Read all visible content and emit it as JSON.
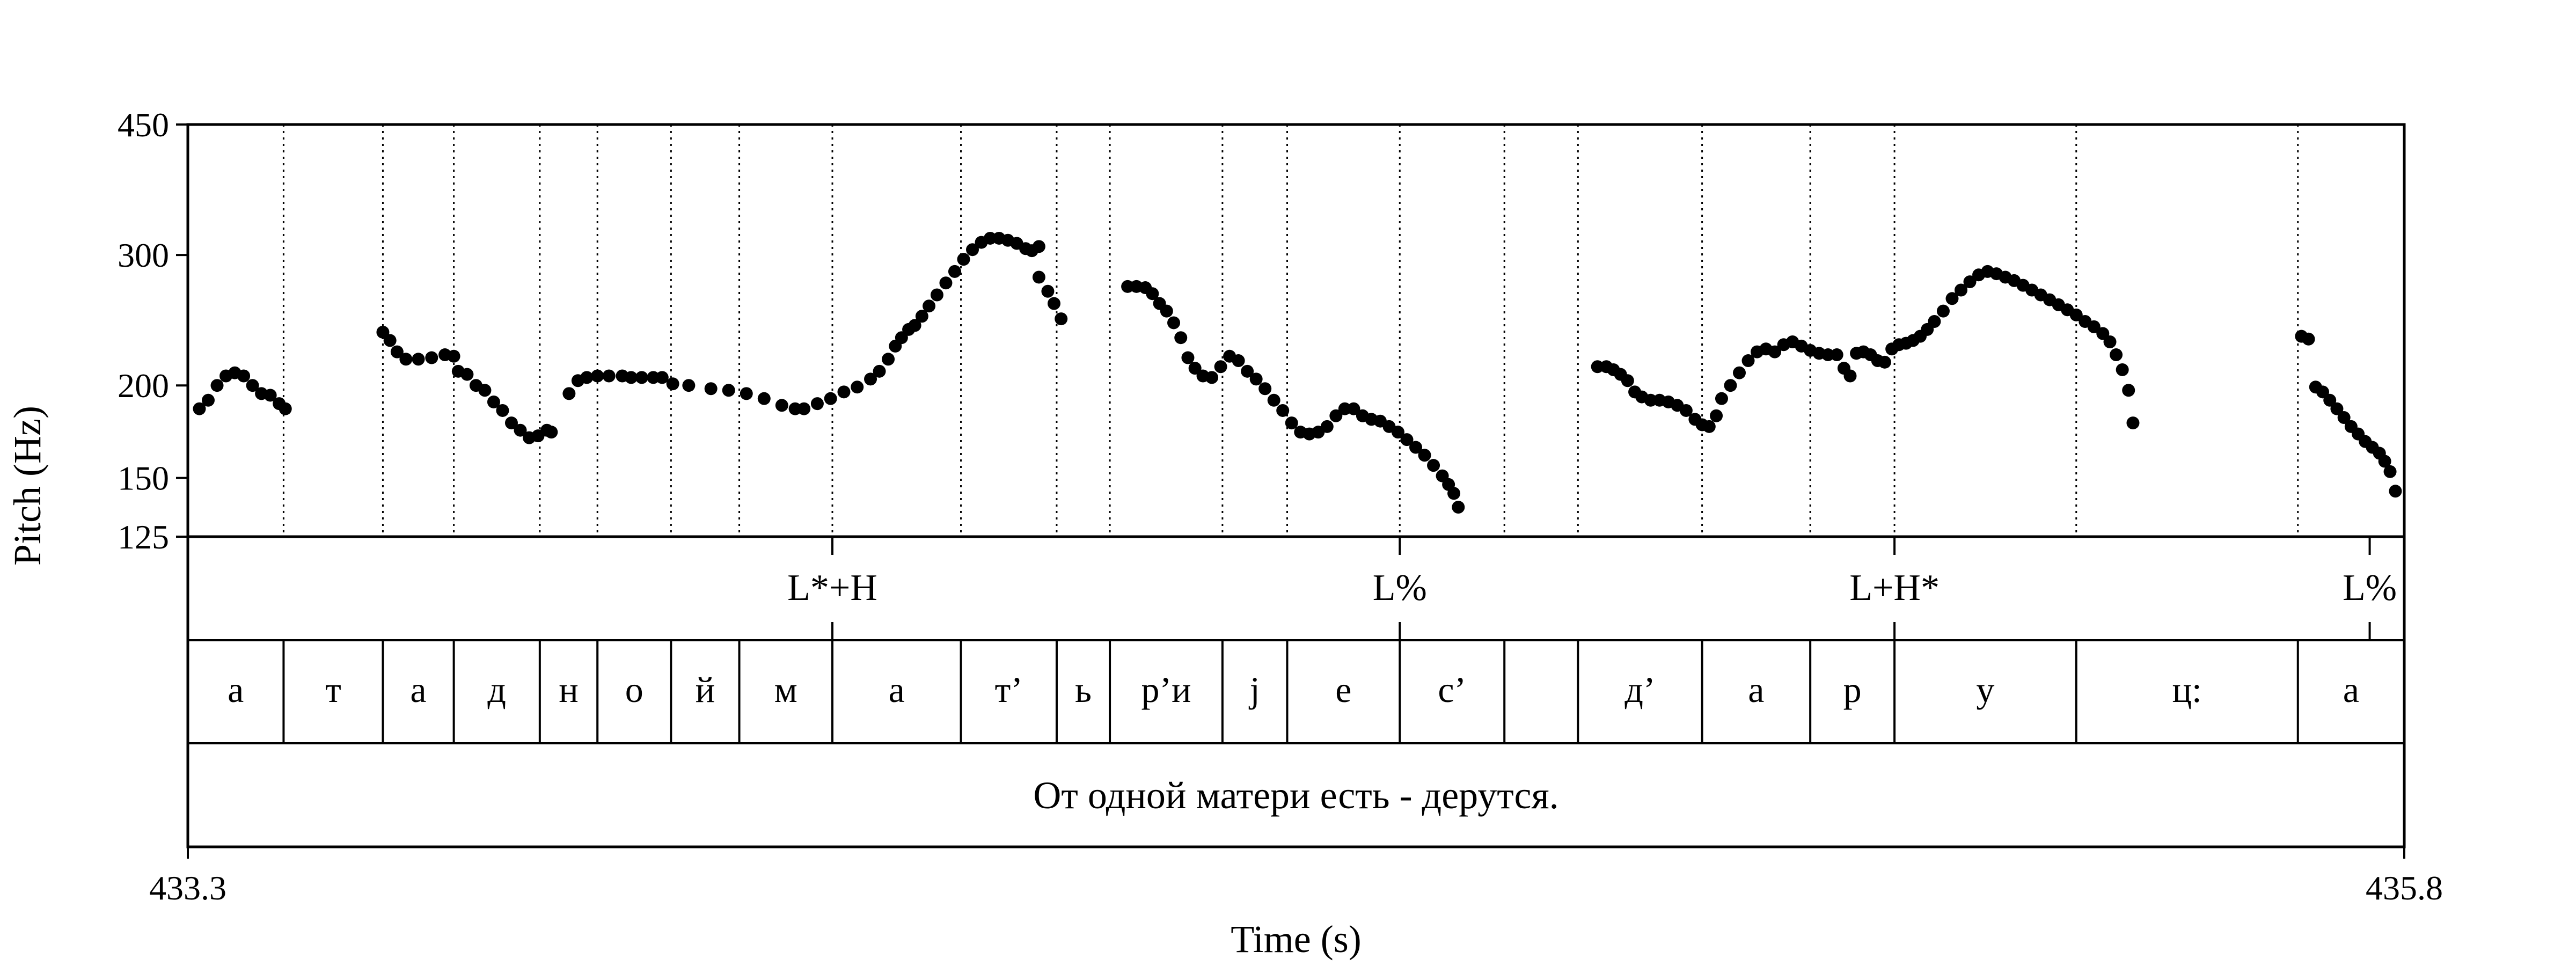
{
  "chart_data": {
    "type": "scatter",
    "title": "",
    "xlabel": "Time (s)",
    "ylabel": "Pitch (Hz)",
    "xlim": [
      433.3,
      435.8
    ],
    "ylim": [
      125,
      450
    ],
    "y_scale": "log",
    "y_ticks": [
      125,
      150,
      200,
      300,
      450
    ],
    "x_tick_labels": [
      "433.3",
      "435.8"
    ],
    "grid": false,
    "legend": "none",
    "series": [
      {
        "points": [
          [
            433.313,
            186
          ],
          [
            433.323,
            191
          ],
          [
            433.333,
            200
          ],
          [
            433.343,
            206
          ],
          [
            433.353,
            208
          ],
          [
            433.363,
            206
          ],
          [
            433.373,
            200
          ],
          [
            433.383,
            195
          ],
          [
            433.393,
            194
          ],
          [
            433.403,
            189
          ],
          [
            433.41,
            186
          ],
          [
            433.52,
            236
          ],
          [
            433.528,
            230
          ],
          [
            433.536,
            222
          ],
          [
            433.546,
            217
          ],
          [
            433.56,
            217
          ],
          [
            433.575,
            218
          ],
          [
            433.59,
            220
          ],
          [
            433.6,
            219
          ],
          [
            433.605,
            209
          ],
          [
            433.615,
            207
          ],
          [
            433.625,
            200
          ],
          [
            433.635,
            197
          ],
          [
            433.645,
            190
          ],
          [
            433.655,
            185
          ],
          [
            433.665,
            178
          ],
          [
            433.675,
            174
          ],
          [
            433.685,
            170
          ],
          [
            433.695,
            171
          ],
          [
            433.705,
            174
          ],
          [
            433.71,
            173
          ],
          [
            433.73,
            195
          ],
          [
            433.74,
            203
          ],
          [
            433.75,
            205
          ],
          [
            433.762,
            206
          ],
          [
            433.775,
            206
          ],
          [
            433.79,
            206
          ],
          [
            433.8,
            205
          ],
          [
            433.812,
            205
          ],
          [
            433.825,
            205
          ],
          [
            433.835,
            205
          ],
          [
            433.847,
            201
          ],
          [
            433.865,
            200
          ],
          [
            433.89,
            198
          ],
          [
            433.91,
            197
          ],
          [
            433.93,
            195
          ],
          [
            433.95,
            192
          ],
          [
            433.97,
            188
          ],
          [
            433.985,
            186
          ],
          [
            433.995,
            186
          ],
          [
            434.01,
            189
          ],
          [
            434.025,
            192
          ],
          [
            434.04,
            196
          ],
          [
            434.055,
            199
          ],
          [
            434.07,
            204
          ],
          [
            434.08,
            209
          ],
          [
            434.09,
            217
          ],
          [
            434.098,
            226
          ],
          [
            434.105,
            232
          ],
          [
            434.113,
            238
          ],
          [
            434.12,
            241
          ],
          [
            434.128,
            248
          ],
          [
            434.136,
            256
          ],
          [
            434.145,
            265
          ],
          [
            434.155,
            275
          ],
          [
            434.165,
            285
          ],
          [
            434.175,
            296
          ],
          [
            434.185,
            305
          ],
          [
            434.195,
            312
          ],
          [
            434.205,
            316
          ],
          [
            434.215,
            316
          ],
          [
            434.225,
            314
          ],
          [
            434.235,
            311
          ],
          [
            434.245,
            306
          ],
          [
            434.252,
            304
          ],
          [
            434.26,
            308
          ],
          [
            434.26,
            280
          ],
          [
            434.27,
            268
          ],
          [
            434.277,
            258
          ],
          [
            434.285,
            246
          ],
          [
            434.36,
            272
          ],
          [
            434.37,
            272
          ],
          [
            434.38,
            271
          ],
          [
            434.388,
            266
          ],
          [
            434.396,
            258
          ],
          [
            434.404,
            252
          ],
          [
            434.412,
            243
          ],
          [
            434.42,
            232
          ],
          [
            434.428,
            218
          ],
          [
            434.436,
            211
          ],
          [
            434.445,
            206
          ],
          [
            434.455,
            205
          ],
          [
            434.465,
            212
          ],
          [
            434.475,
            219
          ],
          [
            434.485,
            216
          ],
          [
            434.495,
            209
          ],
          [
            434.505,
            204
          ],
          [
            434.515,
            198
          ],
          [
            434.525,
            191
          ],
          [
            434.535,
            185
          ],
          [
            434.545,
            178
          ],
          [
            434.555,
            173
          ],
          [
            434.565,
            172
          ],
          [
            434.575,
            173
          ],
          [
            434.585,
            176
          ],
          [
            434.595,
            182
          ],
          [
            434.605,
            186
          ],
          [
            434.615,
            186
          ],
          [
            434.625,
            182
          ],
          [
            434.635,
            180
          ],
          [
            434.645,
            179
          ],
          [
            434.655,
            176
          ],
          [
            434.665,
            173
          ],
          [
            434.675,
            169
          ],
          [
            434.685,
            165
          ],
          [
            434.695,
            161
          ],
          [
            434.705,
            156
          ],
          [
            434.715,
            151
          ],
          [
            434.722,
            147
          ],
          [
            434.728,
            143
          ],
          [
            434.733,
            137
          ],
          [
            434.89,
            212
          ],
          [
            434.9,
            212
          ],
          [
            434.908,
            210
          ],
          [
            434.916,
            207
          ],
          [
            434.924,
            203
          ],
          [
            434.932,
            196
          ],
          [
            434.94,
            193
          ],
          [
            434.95,
            191
          ],
          [
            434.96,
            191
          ],
          [
            434.97,
            190
          ],
          [
            434.98,
            188
          ],
          [
            434.99,
            185
          ],
          [
            435.0,
            180
          ],
          [
            435.008,
            177
          ],
          [
            435.016,
            176
          ],
          [
            435.024,
            182
          ],
          [
            435.03,
            192
          ],
          [
            435.04,
            200
          ],
          [
            435.05,
            208
          ],
          [
            435.06,
            216
          ],
          [
            435.07,
            222
          ],
          [
            435.08,
            224
          ],
          [
            435.09,
            222
          ],
          [
            435.1,
            227
          ],
          [
            435.11,
            229
          ],
          [
            435.12,
            226
          ],
          [
            435.13,
            223
          ],
          [
            435.14,
            221
          ],
          [
            435.15,
            220
          ],
          [
            435.16,
            220
          ],
          [
            435.168,
            211
          ],
          [
            435.175,
            206
          ],
          [
            435.182,
            221
          ],
          [
            435.19,
            222
          ],
          [
            435.198,
            220
          ],
          [
            435.206,
            216
          ],
          [
            435.214,
            215
          ],
          [
            435.222,
            224
          ],
          [
            435.23,
            227
          ],
          [
            435.238,
            228
          ],
          [
            435.246,
            230
          ],
          [
            435.254,
            233
          ],
          [
            435.262,
            238
          ],
          [
            435.27,
            244
          ],
          [
            435.28,
            252
          ],
          [
            435.29,
            262
          ],
          [
            435.3,
            269
          ],
          [
            435.31,
            276
          ],
          [
            435.32,
            282
          ],
          [
            435.33,
            285
          ],
          [
            435.34,
            283
          ],
          [
            435.35,
            280
          ],
          [
            435.36,
            277
          ],
          [
            435.37,
            273
          ],
          [
            435.38,
            269
          ],
          [
            435.39,
            265
          ],
          [
            435.4,
            261
          ],
          [
            435.41,
            257
          ],
          [
            435.42,
            253
          ],
          [
            435.43,
            249
          ],
          [
            435.44,
            244
          ],
          [
            435.45,
            240
          ],
          [
            435.46,
            235
          ],
          [
            435.468,
            229
          ],
          [
            435.475,
            220
          ],
          [
            435.482,
            210
          ],
          [
            435.489,
            197
          ],
          [
            435.494,
            178
          ],
          [
            435.684,
            233
          ],
          [
            435.692,
            231
          ],
          [
            435.7,
            199
          ],
          [
            435.708,
            196
          ],
          [
            435.716,
            191
          ],
          [
            435.724,
            186
          ],
          [
            435.732,
            181
          ],
          [
            435.74,
            176
          ],
          [
            435.748,
            172
          ],
          [
            435.756,
            168
          ],
          [
            435.764,
            165
          ],
          [
            435.772,
            162
          ],
          [
            435.778,
            158
          ],
          [
            435.784,
            153
          ],
          [
            435.79,
            144
          ]
        ]
      }
    ]
  },
  "tiers": {
    "tones": [
      {
        "t": 434.027,
        "label": "L*+H"
      },
      {
        "t": 434.667,
        "label": "L%"
      },
      {
        "t": 435.225,
        "label": "L+H*"
      },
      {
        "t": 435.761,
        "label": "L%"
      }
    ],
    "segments": {
      "boundaries": [
        433.3,
        433.408,
        433.52,
        433.6,
        433.697,
        433.762,
        433.845,
        433.922,
        434.027,
        434.172,
        434.28,
        434.34,
        434.467,
        434.54,
        434.667,
        434.785,
        434.868,
        435.008,
        435.13,
        435.225,
        435.43,
        435.68,
        435.8
      ],
      "labels": [
        "а",
        "т",
        "а",
        "д",
        "н",
        "о",
        "й",
        "м",
        "а",
        "т’",
        "ь",
        "р’и",
        "j",
        "е",
        "с’",
        "",
        "д’",
        "а",
        "р",
        "у",
        "ц:",
        "а"
      ]
    },
    "sentence": "От одной матери есть - дерутся."
  }
}
